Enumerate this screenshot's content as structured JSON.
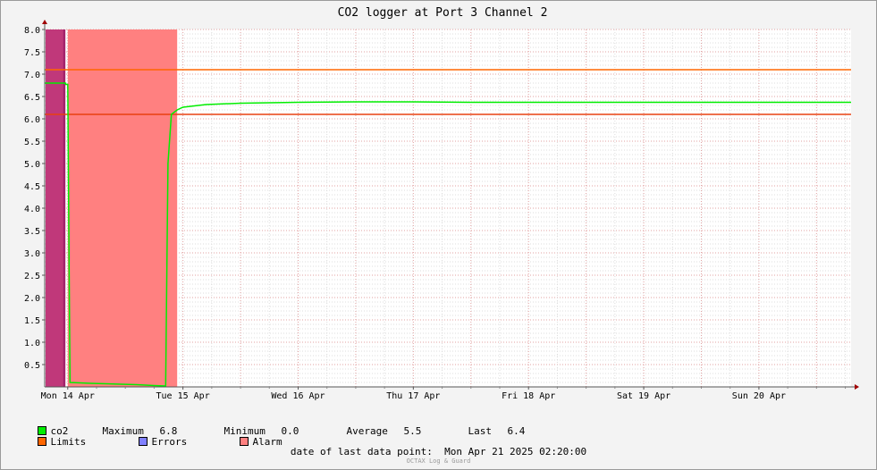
{
  "chart_data": {
    "type": "line",
    "title": "CO2 logger at Port 3 Channel 2",
    "x_tick_labels": [
      "Mon 14 Apr",
      "Tue 15 Apr",
      "Wed 16 Apr",
      "Thu 17 Apr",
      "Fri 18 Apr",
      "Sat 19 Apr",
      "Sun 20 Apr"
    ],
    "y_tick_labels": [
      "0.5",
      "1.0",
      "1.5",
      "2.0",
      "2.5",
      "3.0",
      "3.5",
      "4.0",
      "4.5",
      "5.0",
      "5.5",
      "6.0",
      "6.5",
      "7.0",
      "7.5",
      "8.0"
    ],
    "ylim": [
      0,
      8
    ],
    "xlim_days": [
      -0.2,
      6.8
    ],
    "grid": true,
    "series": [
      {
        "name": "co2",
        "color": "#00ee00",
        "x_days": [
          -0.2,
          -0.02,
          -0.018,
          0.0,
          0.02,
          0.2,
          0.6,
          0.75,
          0.85,
          0.87,
          0.9,
          0.95,
          1.0,
          1.2,
          1.5,
          2.0,
          2.5,
          3.0,
          3.5,
          4.0,
          4.5,
          5.0,
          5.5,
          6.0,
          6.5,
          6.8
        ],
        "y": [
          6.8,
          6.8,
          6.77,
          6.77,
          0.1,
          0.08,
          0.05,
          0.03,
          0.02,
          5.0,
          6.1,
          6.2,
          6.26,
          6.32,
          6.35,
          6.37,
          6.38,
          6.38,
          6.37,
          6.37,
          6.37,
          6.37,
          6.37,
          6.37,
          6.37,
          6.37
        ]
      }
    ],
    "limits": {
      "name": "Limits",
      "color": "#ff6600",
      "values": [
        7.1,
        6.1
      ]
    },
    "errors": {
      "name": "Errors",
      "color": "#8080ff"
    },
    "alarm": {
      "name": "Alarm",
      "color": "#ff8080",
      "intervals_days": [
        [
          0.0,
          0.95
        ]
      ]
    },
    "stats": {
      "maximum": "6.8",
      "minimum": "0.0",
      "average": "5.5",
      "last": "6.4"
    }
  },
  "legend": {
    "co2": "co2",
    "maximum_label": "Maximum",
    "maximum_value": "6.8",
    "minimum_label": "Minimum",
    "minimum_value": "0.0",
    "average_label": "Average",
    "average_value": "5.5",
    "last_label": "Last",
    "last_value": "6.4",
    "limits": "Limits",
    "errors": "Errors",
    "alarm": "Alarm"
  },
  "footer": {
    "last_point_label": "date of last data point:",
    "last_point_value": "Mon Apr 21 2025 02:20:00",
    "watermark": "OCTAX Log & Guard"
  }
}
